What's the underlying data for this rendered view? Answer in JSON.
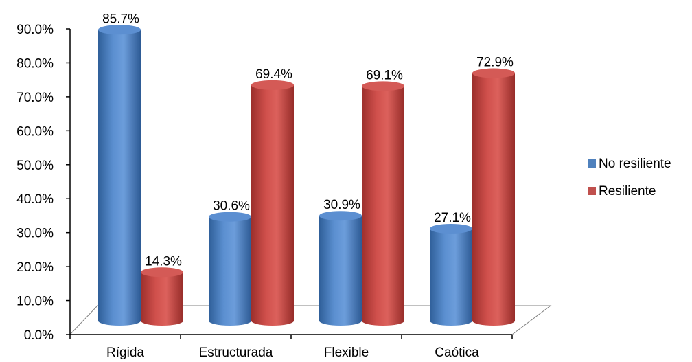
{
  "chart_data": {
    "type": "bar",
    "categories": [
      "Rígida",
      "Estructurada",
      "Flexible",
      "Caótica"
    ],
    "series": [
      {
        "name": "No resiliente",
        "values": [
          85.7,
          30.6,
          30.9,
          27.1
        ],
        "labels": [
          "85.7%",
          "30.6%",
          "30.9%",
          "27.1%"
        ],
        "color": "#4f81bd"
      },
      {
        "name": "Resiliente",
        "values": [
          14.3,
          69.4,
          69.1,
          72.9
        ],
        "labels": [
          "14.3%",
          "69.4%",
          "69.1%",
          "72.9%"
        ],
        "color": "#c0504d"
      }
    ],
    "y_ticks": [
      "0.0%",
      "10.0%",
      "20.0%",
      "30.0%",
      "40.0%",
      "50.0%",
      "60.0%",
      "70.0%",
      "80.0%",
      "90.0%"
    ],
    "ylim": [
      0,
      90
    ],
    "grid": false,
    "legend_position": "right",
    "style": "3d-cylinder"
  }
}
